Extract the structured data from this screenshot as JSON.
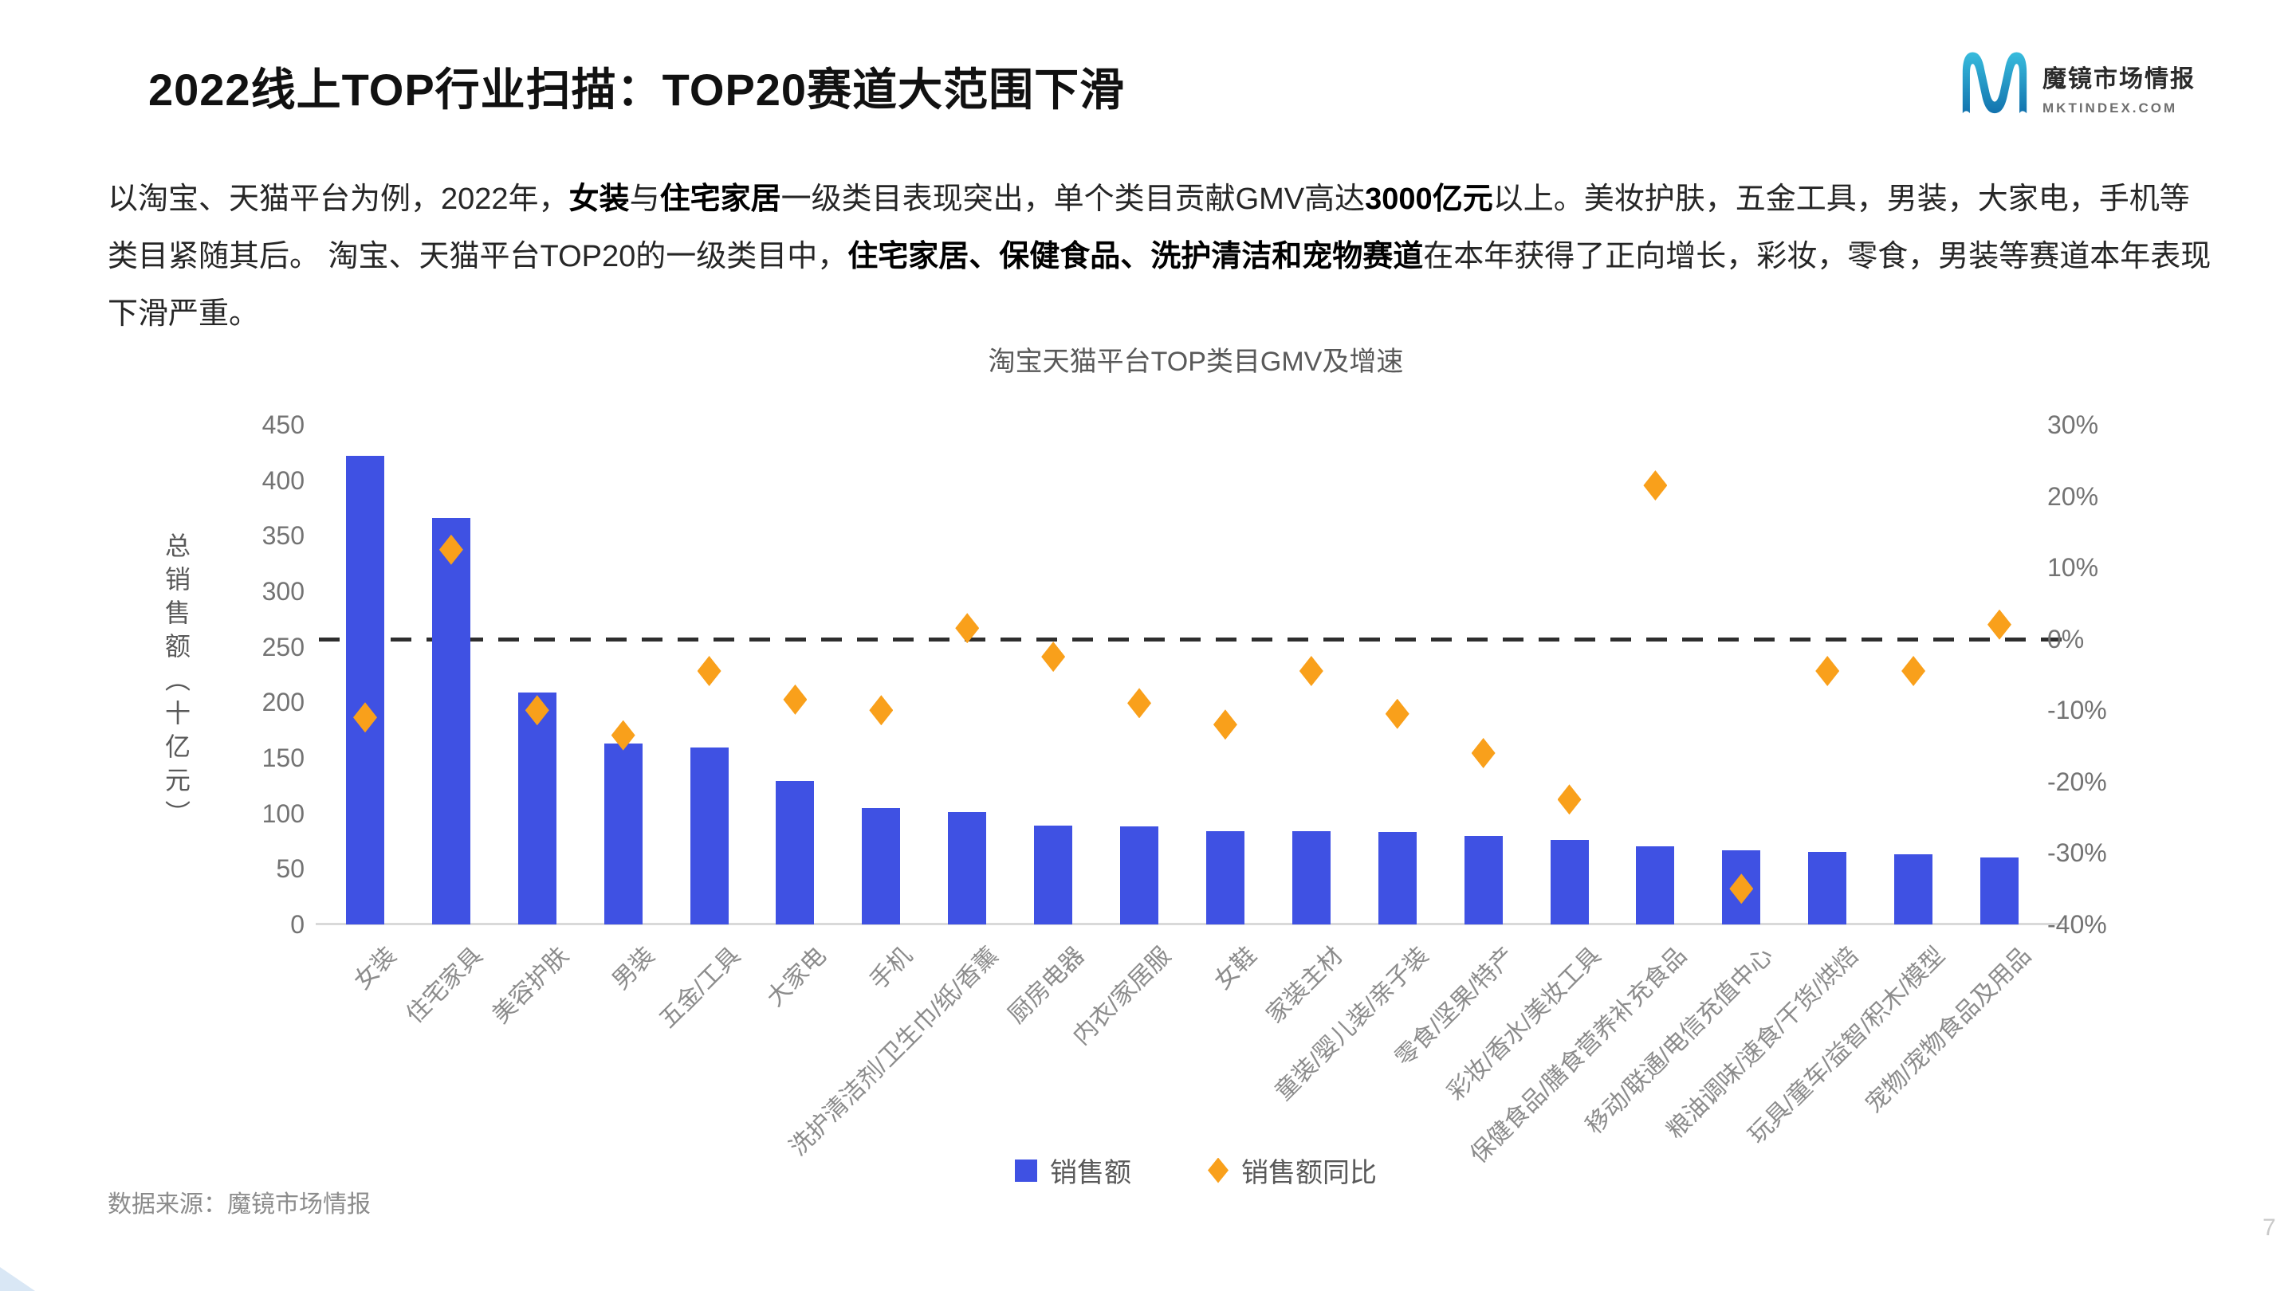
{
  "header": {
    "title": "2022线上TOP行业扫描：TOP20赛道大范围下滑"
  },
  "logo": {
    "brand_cn": "魔镜市场情报",
    "brand_en": "MKTINDEX.COM",
    "mark_color_top": "#35b5d8",
    "mark_color_bottom": "#1477b4"
  },
  "intro": {
    "lines": [
      [
        {
          "text": "以淘宝、天猫平台为例，2022年，",
          "bold": false
        },
        {
          "text": "女装",
          "bold": true
        },
        {
          "text": "与",
          "bold": false
        },
        {
          "text": "住宅家居",
          "bold": true
        },
        {
          "text": "一级类目表现突出，单个类目贡献GMV高达",
          "bold": false
        },
        {
          "text": "3000亿元",
          "bold": true
        },
        {
          "text": "以上。美妆护肤，五金工具，男装，大家电，手机等",
          "bold": false
        }
      ],
      [
        {
          "text": "类目紧随其后。 淘宝、天猫平台TOP20的一级类目中，",
          "bold": false
        },
        {
          "text": "住宅家居、保健食品、洗护清洁和宠物赛道",
          "bold": true
        },
        {
          "text": "在本年获得了正向增长，彩妆，零食，男装等赛道本年表现",
          "bold": false
        }
      ],
      [
        {
          "text": "下滑严重。",
          "bold": false
        }
      ]
    ]
  },
  "chart_data": {
    "type": "bar",
    "title": "淘宝天猫平台TOP类目GMV及增速",
    "categories": [
      "女装",
      "住宅家具",
      "美容护肤",
      "男装",
      "五金/工具",
      "大家电",
      "手机",
      "洗护清洁剂/卫生巾/纸/香薰",
      "厨房电器",
      "内衣/家居服",
      "女鞋",
      "家装主材",
      "童装/婴儿装/亲子装",
      "零食/坚果/特产",
      "彩妆/香水/美妆工具",
      "保健食品/膳食营养补充食品",
      "移动/联通/电信充值中心",
      "粮油调味/速食/干货/烘焙",
      "玩具/童车/益智/积木/模型",
      "宠物/宠物食品及用品"
    ],
    "series": [
      {
        "name": "销售额",
        "type": "bar",
        "yaxis": "left",
        "unit": "十亿元",
        "color": "#3F51E3",
        "values": [
          422,
          366,
          209,
          163,
          159,
          129,
          105,
          101,
          89,
          88,
          84,
          84,
          83,
          80,
          76,
          70,
          67,
          65,
          63,
          60
        ]
      },
      {
        "name": "销售额同比",
        "type": "scatter",
        "yaxis": "right",
        "unit": "%",
        "color": "#F9A01B",
        "values": [
          -11,
          12.5,
          -10,
          -13.5,
          -4.5,
          -8.5,
          -10,
          1.5,
          -2.5,
          -9,
          -12,
          -4.5,
          -10.5,
          -16,
          -22.5,
          21.5,
          -35,
          -4.5,
          -4.5,
          2
        ]
      }
    ],
    "left_axis": {
      "title": "总销售额（十亿元）",
      "min": 0,
      "max": 450,
      "ticks": [
        450,
        400,
        350,
        300,
        250,
        200,
        150,
        100,
        50,
        0
      ]
    },
    "right_axis": {
      "min": -40,
      "max": 30,
      "ticks": [
        "30%",
        "20%",
        "10%",
        "0%",
        "-10%",
        "-20%",
        "-30%",
        "-40%"
      ]
    },
    "reference_line": {
      "at_pct": 0,
      "style": "dashed"
    },
    "legend": {
      "items": [
        "销售额",
        "销售额同比"
      ],
      "position": "bottom"
    },
    "grid": false
  },
  "footer": {
    "source": "数据来源：魔镜市场情报",
    "page_number": "7"
  }
}
